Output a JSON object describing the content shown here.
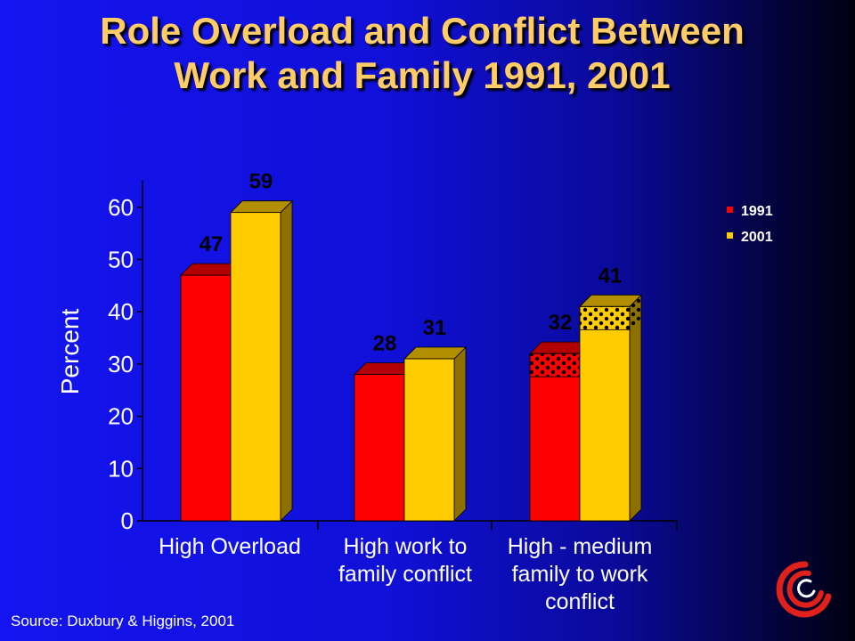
{
  "title": {
    "line1": "Role Overload and Conflict Between",
    "line2": "Work and Family 1991, 2001"
  },
  "source": "Source: Duxbury & Higgins, 2001",
  "colors": {
    "series_1991": "#ff0000",
    "series_2001": "#ffcc00",
    "title": "#ffcc66",
    "axis_text": "#ffffff",
    "category_text": "#ffffff"
  },
  "chart_data": {
    "type": "bar",
    "ylabel": "Percent",
    "xlabel": "",
    "ylim": [
      0,
      60
    ],
    "yticks": [
      0,
      10,
      20,
      30,
      40,
      50,
      60
    ],
    "grid": false,
    "legend_position": "top-right",
    "categories": [
      [
        "High Overload"
      ],
      [
        "High work to",
        "family conflict"
      ],
      [
        "High - medium",
        "family to work",
        "conflict"
      ]
    ],
    "series": [
      {
        "name": "1991",
        "values": [
          47,
          28,
          32
        ]
      },
      {
        "name": "2001",
        "values": [
          59,
          31,
          41
        ]
      }
    ],
    "data_labels": [
      [
        "47",
        "59"
      ],
      [
        "28",
        "31"
      ],
      [
        "32",
        "41"
      ]
    ]
  }
}
